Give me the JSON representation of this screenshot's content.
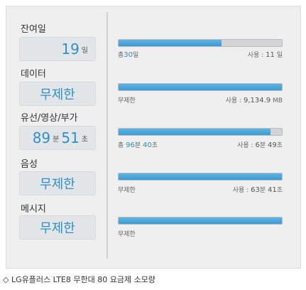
{
  "caption": "◇ LG유플러스 LTE8 무한대 80 요금제 소모량",
  "colors": {
    "accent": "#2f8fc6",
    "bar_fill": "#4aa6dc",
    "bar_track": "#d2d4d6"
  },
  "rows": [
    {
      "label": "잔여일",
      "box": {
        "v1": "19",
        "u1": "일"
      },
      "fill_fraction": 0.63,
      "left": {
        "prefix": "총",
        "v1": "30",
        "u1": "일"
      },
      "right": {
        "prefix": "사용 :",
        "v1": "11",
        "u1": "일"
      }
    },
    {
      "label": "데이터",
      "box": {
        "text": "무제한"
      },
      "fill_fraction": 1.0,
      "left": {
        "text": "무제한"
      },
      "right": {
        "prefix": "사용 :",
        "v1": "9,134.9",
        "u1": "MB"
      }
    },
    {
      "label": "유선/영상/부가",
      "box": {
        "v1": "89",
        "u1": "분",
        "v2": "51",
        "u2": "초"
      },
      "fill_fraction": 0.93,
      "left": {
        "prefix": "총",
        "v1": "96",
        "u1": "분",
        "v2": "40",
        "u2": "초"
      },
      "right": {
        "prefix": "사용 :",
        "v1": "6",
        "u1": "분",
        "v2": "49",
        "u2": "초"
      }
    },
    {
      "label": "음성",
      "box": {
        "text": "무제한"
      },
      "fill_fraction": 1.0,
      "left": {
        "text": "무제한"
      },
      "right": {
        "prefix": "사용 :",
        "v1": "63",
        "u1": "분",
        "v2": "41",
        "u2": "초"
      }
    },
    {
      "label": "메시지",
      "box": {
        "text": "무제한"
      },
      "fill_fraction": 1.0,
      "left": {
        "text": "무제한"
      }
    }
  ]
}
